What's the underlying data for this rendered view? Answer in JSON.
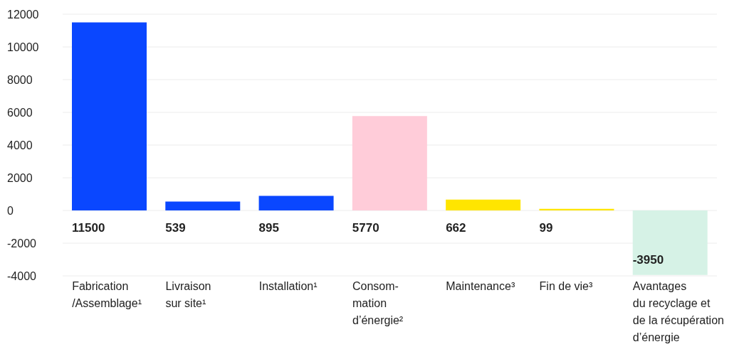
{
  "chart_data": {
    "type": "bar",
    "categories": [
      "Fabrication\n/Assemblage¹",
      "Livraison\nsur site¹",
      "Installation¹",
      "Consom-\nmation\nd’énergie²",
      "Maintenance³",
      "Fin de vie³",
      "Avantages\ndu recyclage et\nde la récupération\nd’énergie"
    ],
    "values": [
      11500,
      539,
      895,
      5770,
      662,
      99,
      -3950
    ],
    "colors": [
      "#0a47ff",
      "#0a47ff",
      "#0a47ff",
      "#ffccd9",
      "#ffe500",
      "#ffe500",
      "#d6f2e6"
    ],
    "ylim": [
      -4000,
      12000
    ],
    "yticks": [
      -4000,
      -2000,
      0,
      2000,
      4000,
      6000,
      8000,
      10000,
      12000
    ],
    "grid": "y",
    "data_labels": true
  }
}
